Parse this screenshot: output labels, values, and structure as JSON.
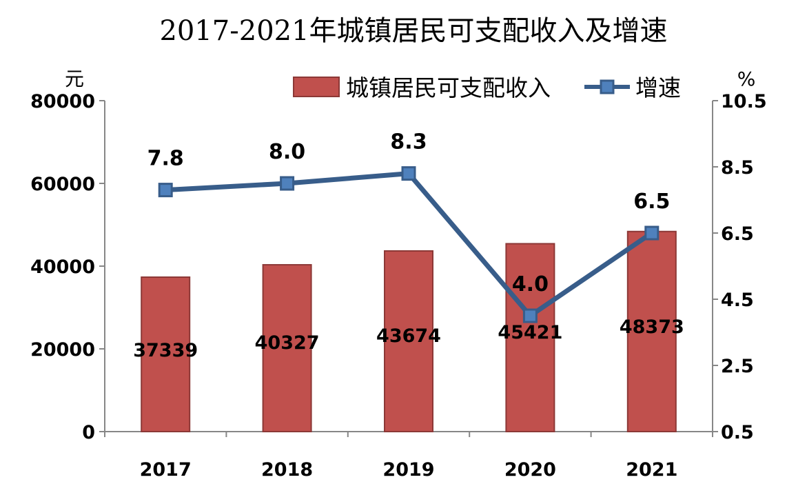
{
  "chart_data": {
    "type": "bar",
    "title": "2017-2021年城镇居民可支配收入及增速",
    "categories": [
      "2017",
      "2018",
      "2019",
      "2020",
      "2021"
    ],
    "series": [
      {
        "name": "城镇居民可支配收入",
        "type": "bar",
        "axis": "left",
        "values": [
          37339,
          40327,
          43674,
          45421,
          48373
        ],
        "labels": [
          "37339",
          "40327",
          "43674",
          "45421",
          "48373"
        ],
        "color": "#c0504d"
      },
      {
        "name": "增速",
        "type": "line",
        "axis": "right",
        "values": [
          7.8,
          8.0,
          8.3,
          4.0,
          6.5
        ],
        "labels": [
          "7.8",
          "8.0",
          "8.3",
          "4.0",
          "6.5"
        ],
        "color": "#385d8a"
      }
    ],
    "y_left": {
      "unit": "元",
      "range": [
        0,
        80000
      ],
      "ticks": [
        "0",
        "20000",
        "40000",
        "60000",
        "80000"
      ]
    },
    "y_right": {
      "unit": "%",
      "range": [
        0.5,
        10.5
      ],
      "ticks": [
        "0.5",
        "2.5",
        "4.5",
        "6.5",
        "8.5",
        "10.5"
      ]
    },
    "grid": false,
    "legend_position": "top-right"
  }
}
